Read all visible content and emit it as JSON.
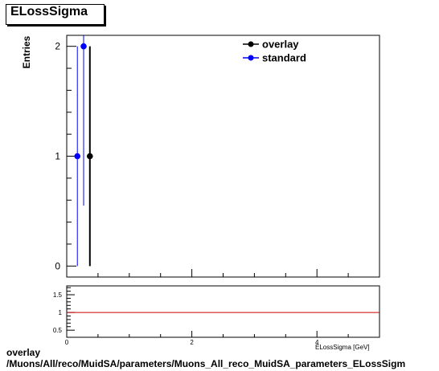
{
  "title": "ELossSigma",
  "footer": {
    "line1": "overlay",
    "line2": "/Muons/All/reco/MuidSA/parameters/Muons_All_reco_MuidSA_parameters_ELossSigm"
  },
  "chart_data": [
    {
      "type": "scatter",
      "title": "ELossSigma",
      "ylabel": "Entries",
      "xlim": [
        0,
        5
      ],
      "ylim": [
        -0.1,
        2.1
      ],
      "yticks": [
        0,
        1,
        2
      ],
      "legend_position": "top-right",
      "series": [
        {
          "name": "overlay",
          "color": "#000000",
          "points": [
            {
              "x": 0.37,
              "y": 1,
              "ylow": 0,
              "yhigh": 2
            }
          ]
        },
        {
          "name": "standard",
          "color": "#0000ff",
          "points": [
            {
              "x": 0.17,
              "y": 1,
              "ylow": 0,
              "yhigh": 2
            },
            {
              "x": 0.27,
              "y": 2,
              "ylow": 0.55,
              "yhigh": 3.4
            }
          ]
        }
      ]
    },
    {
      "type": "line",
      "xlabel": "ELossSigma [GeV]",
      "xlim": [
        0,
        5
      ],
      "ylim": [
        0.3,
        1.75
      ],
      "xticks": [
        0,
        2,
        4
      ],
      "yticks": [
        0.5,
        1,
        1.5
      ],
      "reference_line": {
        "y": 1,
        "color": "#cc0000"
      }
    }
  ]
}
